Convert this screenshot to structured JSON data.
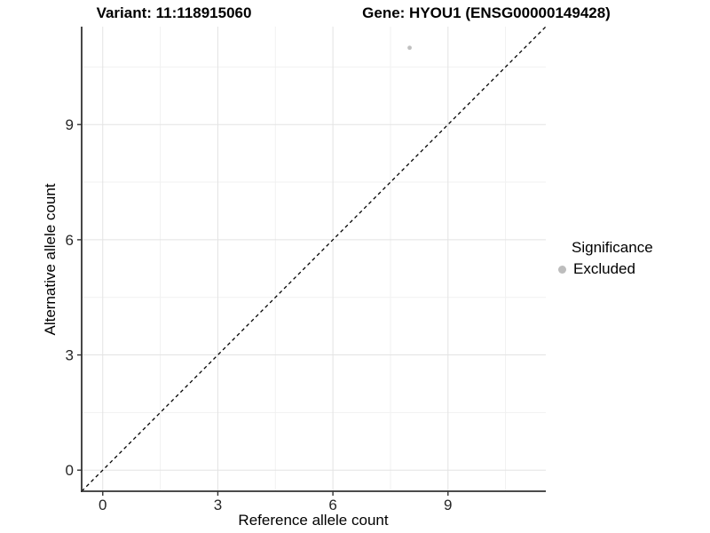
{
  "chart_data": {
    "type": "scatter",
    "title_left": "Variant: 11:118915060",
    "title_right": "Gene: HYOU1 (ENSG00000149428)",
    "xlabel": "Reference allele count",
    "ylabel": "Alternative allele count",
    "x_ticks": [
      0,
      3,
      6,
      9
    ],
    "y_ticks": [
      0,
      3,
      6,
      9
    ],
    "x_minor_ticks": [
      1.5,
      4.5,
      7.5,
      10.5
    ],
    "y_minor_ticks": [
      1.5,
      4.5,
      7.5,
      10.5
    ],
    "xlim": [
      -0.55,
      11.55
    ],
    "ylim": [
      -0.55,
      11.55
    ],
    "grid": "major+minor",
    "legend_position": "right",
    "series": [
      {
        "name": "Excluded",
        "color": "#c0c0c0",
        "point_radius": 2.4,
        "points": [
          {
            "x": 8,
            "y": 11
          }
        ]
      }
    ],
    "reference_line": {
      "kind": "identity",
      "slope": 1,
      "intercept": 0,
      "style": "dashed",
      "color": "#000000"
    },
    "colors": {
      "grid_major": "#e3e3e3",
      "grid_minor": "#f1f1f1",
      "axis_line": "#333333",
      "tick_mark": "#333333",
      "tick_text": "#262626"
    }
  },
  "legend": {
    "title": "Significance",
    "items": [
      {
        "label": "Excluded",
        "color": "#bdbdbd"
      }
    ]
  }
}
